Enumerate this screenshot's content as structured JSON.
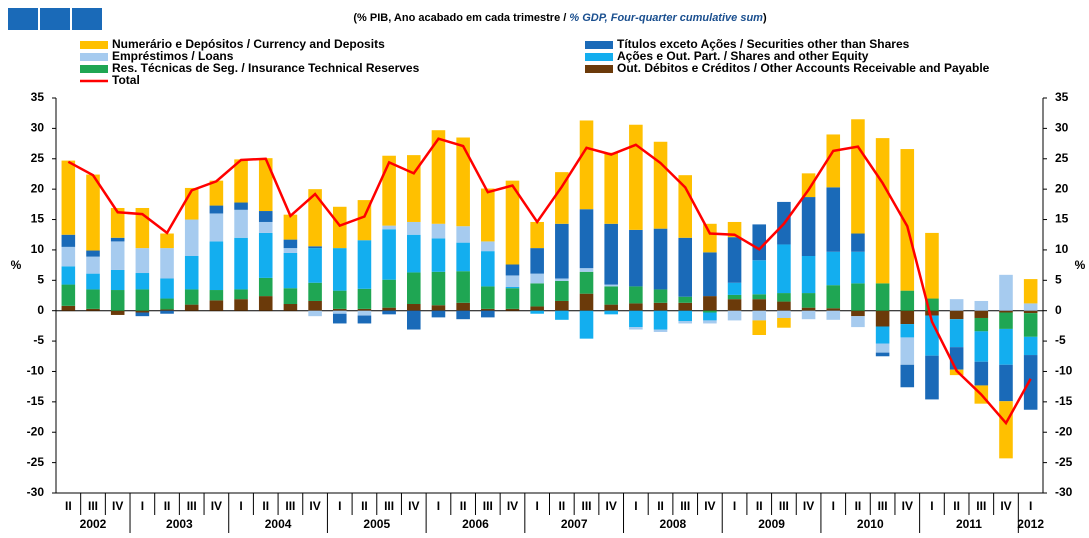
{
  "chart_data": {
    "type": "bar",
    "stacked": true,
    "title_pt": "(% PIB, Ano acabado em cada trimestre",
    "title_sep": "/",
    "title_en": "% GDP, Four-quarter cumulative sum",
    "title_close": ")",
    "ylabel": "%",
    "categories": [
      "II",
      "III",
      "IV",
      "I",
      "II",
      "III",
      "IV",
      "I",
      "II",
      "III",
      "IV",
      "I",
      "II",
      "III",
      "IV",
      "I",
      "II",
      "III",
      "IV",
      "I",
      "II",
      "III",
      "IV",
      "I",
      "II",
      "III",
      "IV",
      "I",
      "II",
      "III",
      "IV",
      "I",
      "II",
      "III",
      "IV",
      "I",
      "II",
      "III",
      "IV",
      "I"
    ],
    "years": [
      "2002",
      "2003",
      "2004",
      "2005",
      "2006",
      "2007",
      "2008",
      "2009",
      "2010",
      "2011",
      "2012"
    ],
    "ylim": [
      -30,
      35
    ],
    "yticks": [
      -30,
      -25,
      -20,
      -15,
      -10,
      -5,
      0,
      5,
      10,
      15,
      20,
      25,
      30,
      35
    ],
    "series": [
      {
        "name": "Out. Débitos e Créditos / Other Accounts Receivable and Payable",
        "color": "#6b3a0a",
        "values": [
          0.8,
          0.3,
          -0.7,
          -0.3,
          0.2,
          1,
          1.7,
          1.9,
          2.4,
          1.1,
          1.6,
          0.3,
          0.3,
          0.5,
          1.1,
          0.9,
          1.3,
          0.3,
          0.3,
          0.7,
          1.6,
          2.8,
          1,
          1.2,
          1.3,
          1.3,
          2.4,
          1.9,
          1.9,
          1.5,
          0.5,
          0.4,
          -0.9,
          -2.6,
          -2.2,
          -0.8,
          -1.4,
          -1.2,
          -0.3,
          -0.4
        ]
      },
      {
        "name": "Res. Técnicas de Seg. / Insurance Technical Reserves",
        "color": "#1fa653",
        "values": [
          3.5,
          3.2,
          3.4,
          3.5,
          1.8,
          2.5,
          1.7,
          1.6,
          3,
          2.6,
          3,
          3,
          3.3,
          4.6,
          5.2,
          5.5,
          5.2,
          3.7,
          3.4,
          3.8,
          3.3,
          3.6,
          3,
          2.8,
          2.2,
          1,
          -0.3,
          0.7,
          0.8,
          1.4,
          2.4,
          3.8,
          4.5,
          4.5,
          3.3,
          2,
          0,
          -2.2,
          -2.7,
          -3.9
        ]
      },
      {
        "name": "Ações e Out. Part. / Shares and other Equity",
        "color": "#13aeef",
        "values": [
          3,
          2.6,
          3.3,
          2.7,
          3.3,
          5.5,
          8,
          8.5,
          7.4,
          5.8,
          5.7,
          7,
          8,
          8.3,
          6.2,
          5.5,
          4.7,
          5.8,
          0.2,
          -0.5,
          -1.5,
          -4.6,
          -0.6,
          -2.7,
          -3.1,
          -1.7,
          -1.3,
          2,
          5.6,
          8,
          6.1,
          5.5,
          5.2,
          -2.8,
          -2.2,
          -6.6,
          -4.6,
          -5,
          -5.9,
          -3
        ]
      },
      {
        "name": "Empréstimos / Loans",
        "color": "#a6cbef",
        "values": [
          3.2,
          2.8,
          4.7,
          4.1,
          5,
          6,
          4.6,
          4.6,
          1.8,
          0.8,
          -0.9,
          -0.5,
          -0.8,
          0.6,
          2.1,
          2.4,
          2.7,
          1.6,
          1.9,
          1.6,
          0.4,
          0.6,
          0.3,
          -0.4,
          -0.4,
          -0.4,
          -0.5,
          -1.6,
          -1.6,
          -1.2,
          -1.4,
          -1.5,
          -1.8,
          -1.5,
          -4.5,
          0,
          1.9,
          1.6,
          5.9,
          1.2
        ]
      },
      {
        "name": "Títulos exceto Ações / Securities other than Shares",
        "color": "#1a6ab8",
        "values": [
          2,
          1,
          0.6,
          -0.6,
          -0.5,
          0,
          1.3,
          1.2,
          1.8,
          1.4,
          0.3,
          -1.6,
          -1.3,
          -0.6,
          -3.1,
          -1.1,
          -1.4,
          -1.1,
          1.8,
          4.2,
          9,
          9.7,
          10,
          9.3,
          10,
          9.7,
          7.2,
          7.5,
          5.9,
          7,
          9.7,
          10.6,
          3,
          -0.6,
          -3.7,
          -7.2,
          -3.7,
          -3.9,
          -6,
          -9
        ]
      },
      {
        "name": "Numerário e Depósitos / Currency and Deposits",
        "color": "#ffc000",
        "values": [
          12.2,
          12.5,
          4.9,
          6.6,
          2.4,
          5.2,
          4.1,
          7.1,
          8.7,
          4.1,
          9.4,
          6.8,
          6.6,
          11.5,
          11,
          15.4,
          14.6,
          8.7,
          13.8,
          4.3,
          8.5,
          14.6,
          11.7,
          17.3,
          14.3,
          10.3,
          4.7,
          2.5,
          -2.4,
          -1.6,
          3.9,
          8.7,
          18.8,
          23.9,
          23.3,
          10.8,
          -0.9,
          -3,
          -9.4,
          4
        ]
      },
      {
        "name": "Total",
        "color": "#ff0000",
        "type": "line",
        "values": [
          24.5,
          22.3,
          16.2,
          15.9,
          12.8,
          19.8,
          21.3,
          24.8,
          25,
          15.6,
          19.2,
          14,
          15.5,
          24.4,
          22.6,
          28.3,
          27.1,
          19.5,
          20.6,
          14.6,
          20.4,
          26.8,
          25.7,
          27.3,
          24.3,
          20.3,
          12.7,
          12.5,
          10.1,
          14.3,
          19.9,
          26.3,
          27,
          21,
          13.9,
          -1.8,
          -9.9,
          -13.8,
          -18.5,
          -11.2
        ]
      }
    ]
  }
}
